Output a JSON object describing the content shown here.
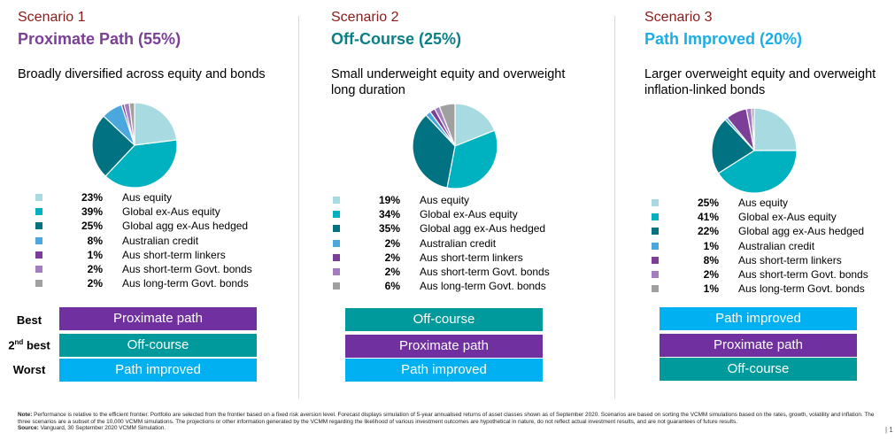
{
  "colors": {
    "scenario_label": "#8b1a1a",
    "proximate": "#7030a0",
    "offcourse": "#00999c",
    "improved": "#00b0f0",
    "title_proximate": "#7b3f98",
    "title_offcourse": "#0b7f86",
    "title_improved": "#1aaee6"
  },
  "asset_classes": [
    {
      "name": "Aus equity",
      "color": "#a8dbe1"
    },
    {
      "name": "Global ex-Aus equity",
      "color": "#00b2bf"
    },
    {
      "name": "Global agg ex-Aus hedged",
      "color": "#007282"
    },
    {
      "name": "Australian credit",
      "color": "#4aa8de"
    },
    {
      "name": "Aus short-term linkers",
      "color": "#7b3f98"
    },
    {
      "name": "Aus short-term Govt. bonds",
      "color": "#a47dc0"
    },
    {
      "name": "Aus long-term Govt. bonds",
      "color": "#a0a0a0"
    }
  ],
  "ranking_labels": {
    "best": "Best",
    "second_pre": "2",
    "second_sup": "nd",
    "second_post": " best",
    "worst": "Worst"
  },
  "chart_data": [
    {
      "type": "pie",
      "scenario_label": "Scenario 1",
      "title": "Proximate Path (55%)",
      "title_color": "#7b3f98",
      "description": "Broadly diversified across equity and bonds",
      "categories": [
        "Aus equity",
        "Global ex-Aus equity",
        "Global agg ex-Aus hedged",
        "Australian credit",
        "Aus short-term linkers",
        "Aus short-term Govt. bonds",
        "Aus long-term Govt. bonds"
      ],
      "values": [
        23,
        39,
        25,
        8,
        1,
        2,
        2
      ],
      "value_labels": [
        "23%",
        "39%",
        "25%",
        "8%",
        "1%",
        "2%",
        "2%"
      ],
      "ranking": [
        {
          "label": "Proximate path",
          "color": "#7030a0"
        },
        {
          "label": "Off-course",
          "color": "#00999c"
        },
        {
          "label": "Path improved",
          "color": "#00b0f0"
        }
      ]
    },
    {
      "type": "pie",
      "scenario_label": "Scenario 2",
      "title": "Off-Course (25%)",
      "title_color": "#0b7f86",
      "description": "Small underweight equity and overweight long duration",
      "categories": [
        "Aus equity",
        "Global ex-Aus equity",
        "Global agg ex-Aus hedged",
        "Australian credit",
        "Aus short-term linkers",
        "Aus short-term Govt. bonds",
        "Aus long-term Govt. bonds"
      ],
      "values": [
        19,
        34,
        35,
        2,
        2,
        2,
        6
      ],
      "value_labels": [
        "19%",
        "34%",
        "35%",
        "2%",
        "2%",
        "2%",
        "6%"
      ],
      "ranking": [
        {
          "label": "Off-course",
          "color": "#00999c"
        },
        {
          "label": "Proximate path",
          "color": "#7030a0"
        },
        {
          "label": "Path improved",
          "color": "#00b0f0"
        }
      ]
    },
    {
      "type": "pie",
      "scenario_label": "Scenario 3",
      "title": "Path Improved (20%)",
      "title_color": "#1aaee6",
      "description": "Larger overweight equity and overweight inflation-linked bonds",
      "categories": [
        "Aus equity",
        "Global ex-Aus equity",
        "Global agg ex-Aus hedged",
        "Australian credit",
        "Aus short-term linkers",
        "Aus short-term Govt. bonds",
        "Aus long-term Govt. bonds"
      ],
      "values": [
        25,
        41,
        22,
        1,
        8,
        2,
        1
      ],
      "value_labels": [
        "25%",
        "41%",
        "22%",
        "1%",
        "8%",
        "2%",
        "1%"
      ],
      "ranking": [
        {
          "label": "Path improved",
          "color": "#00b0f0"
        },
        {
          "label": "Proximate path",
          "color": "#7030a0"
        },
        {
          "label": "Off-course",
          "color": "#00999c"
        }
      ]
    }
  ],
  "footer": {
    "note_label": "Note:",
    "note_text": "  Performance is relative to the efficient frontier. Portfolio are selected from the frontier based on a fixed risk aversion level. Forecast displays simulation of 5-year annualised returns of asset classes shown as of September 2020. Scenarios are based on sorting the VCMM simulations based on the rates, growth, volatility and inflation. The three scenarios are a subset of the 10,000 VCMM simulations. The projections or other information generated by the VCMM regarding the likelihood of various investment outcomes are hypothetical in nature, do not reflect actual investment results, and are not guarantees of future results.",
    "source_label": "Source:",
    "source_text": " Vanguard, 30 September 2020 VCMM Simulation.",
    "page_number": "| 1"
  }
}
